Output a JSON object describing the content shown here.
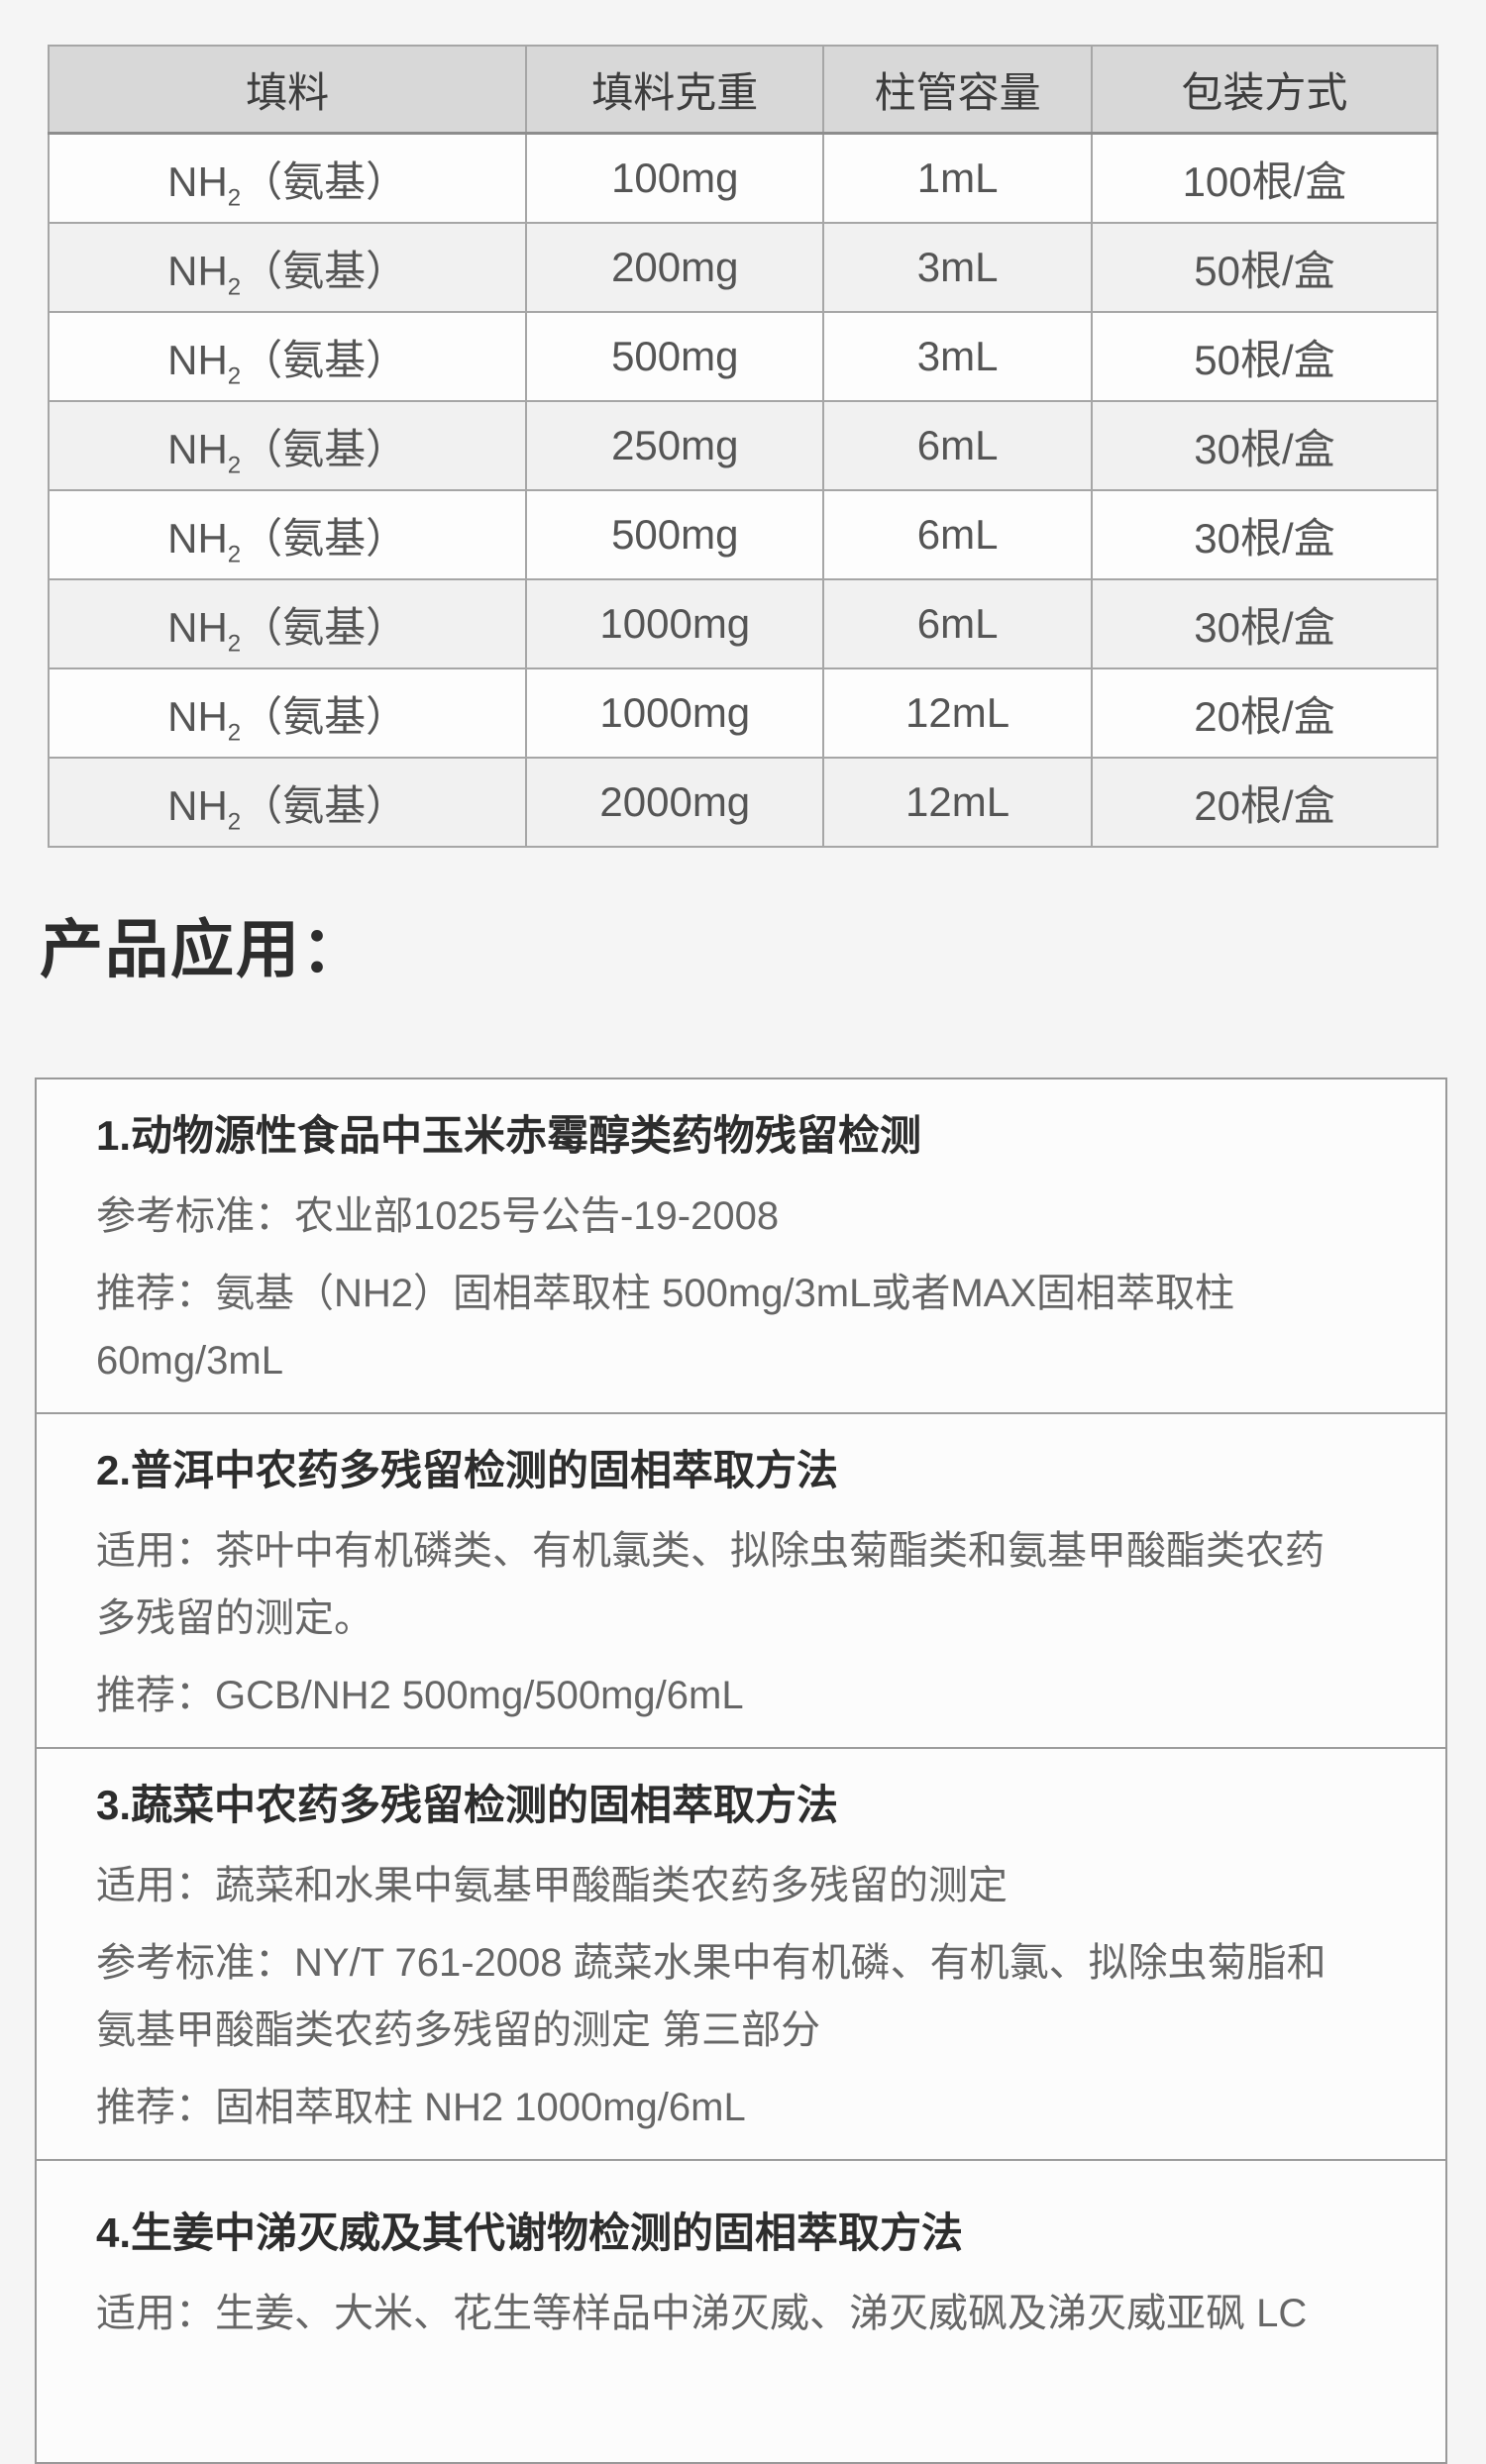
{
  "colors": {
    "page_bg": "#f5f5f5",
    "box_bg": "#fcfcfc",
    "table_header_bg": "#d8d8d8",
    "table_row_bg": "#fdfdfd",
    "table_row_alt_bg": "#f1f1f1",
    "border_strong": "#8d8d8d",
    "border_light": "#a6a6a6",
    "text_dark": "#2d2d2d",
    "text_table": "#555555",
    "text_body": "#666666"
  },
  "table": {
    "headers": [
      "填料",
      "填料克重",
      "柱管容量",
      "包装方式"
    ],
    "rows": [
      {
        "filler": {
          "main": "NH",
          "sub": "2",
          "rest": "（氨基）"
        },
        "weight": "100mg",
        "volume": "1mL",
        "packing": "100根/盒"
      },
      {
        "filler": {
          "main": "NH",
          "sub": "2",
          "rest": "（氨基）"
        },
        "weight": "200mg",
        "volume": "3mL",
        "packing": "50根/盒"
      },
      {
        "filler": {
          "main": "NH",
          "sub": "2",
          "rest": "（氨基）"
        },
        "weight": "500mg",
        "volume": "3mL",
        "packing": "50根/盒"
      },
      {
        "filler": {
          "main": "NH",
          "sub": "2",
          "rest": "（氨基）"
        },
        "weight": "250mg",
        "volume": "6mL",
        "packing": "30根/盒"
      },
      {
        "filler": {
          "main": "NH",
          "sub": "2",
          "rest": "（氨基）"
        },
        "weight": "500mg",
        "volume": "6mL",
        "packing": "30根/盒"
      },
      {
        "filler": {
          "main": "NH",
          "sub": "2",
          "rest": "（氨基）"
        },
        "weight": "1000mg",
        "volume": "6mL",
        "packing": "30根/盒"
      },
      {
        "filler": {
          "main": "NH",
          "sub": "2",
          "rest": "（氨基）"
        },
        "weight": "1000mg",
        "volume": "12mL",
        "packing": "20根/盒"
      },
      {
        "filler": {
          "main": "NH",
          "sub": "2",
          "rest": "（氨基）"
        },
        "weight": "2000mg",
        "volume": "12mL",
        "packing": "20根/盒"
      }
    ]
  },
  "applications": {
    "heading": "产品应用：",
    "sections": [
      {
        "title": "1.动物源性食品中玉米赤霉醇类药物残留检测",
        "paragraphs": [
          [
            "参考标准：农业部1025号公告-19-2008"
          ],
          [
            "推荐：氨基（NH2）固相萃取柱 500mg/3mL或者MAX固相萃取柱",
            "60mg/3mL"
          ]
        ]
      },
      {
        "title": "2.普洱中农药多残留检测的固相萃取方法",
        "paragraphs": [
          [
            "适用：茶叶中有机磷类、有机氯类、拟除虫菊酯类和氨基甲酸酯类农药",
            "多残留的测定。"
          ],
          [
            "推荐：GCB/NH2 500mg/500mg/6mL"
          ]
        ]
      },
      {
        "title": "3.蔬菜中农药多残留检测的固相萃取方法",
        "paragraphs": [
          [
            "适用：蔬菜和水果中氨基甲酸酯类农药多残留的测定"
          ],
          [
            "参考标准：NY/T 761-2008 蔬菜水果中有机磷、有机氯、拟除虫菊脂和",
            "氨基甲酸酯类农药多残留的测定 第三部分"
          ],
          [
            "推荐：固相萃取柱 NH2 1000mg/6mL"
          ]
        ]
      },
      {
        "title": "4.生姜中涕灭威及其代谢物检测的固相萃取方法",
        "paragraphs": [
          [
            "适用：生姜、大米、花生等样品中涕灭威、涕灭威砜及涕灭威亚砜 LC"
          ]
        ]
      }
    ]
  }
}
